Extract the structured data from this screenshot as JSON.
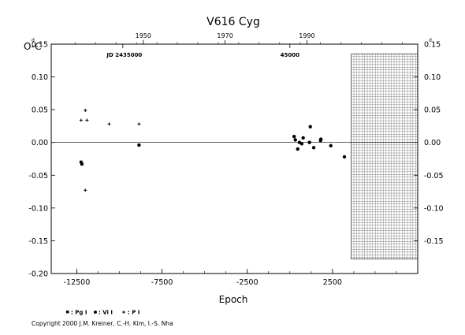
{
  "chart_data": {
    "type": "scatter",
    "title": "V616  Cyg",
    "ylabel": "O-C",
    "ylabel_unit": "d",
    "xlabel": "Epoch",
    "xlim": [
      -14000,
      7500
    ],
    "ylim": [
      -0.2,
      0.15
    ],
    "x_ticks": [
      "-12500",
      "-7500",
      "-2500",
      "2500"
    ],
    "x_tick_values": [
      -12500,
      -7500,
      -2500,
      2500
    ],
    "y_ticks_left": [
      "-0.20",
      "-0.15",
      "-0.10",
      "-0.05",
      "0.00",
      "0.05",
      "0.10",
      "0.15"
    ],
    "y_ticks_right": [
      "-0.15",
      "-0.10",
      "-0.05",
      "0.00",
      "0.05",
      "0.10",
      "0.15"
    ],
    "y_tick_values": [
      -0.2,
      -0.15,
      -0.1,
      -0.05,
      0.0,
      0.05,
      0.1,
      0.15
    ],
    "top_year_ticks": [
      "1950",
      "1970",
      "1990"
    ],
    "top_year_epochs": [
      -8600,
      -3800,
      1000
    ],
    "top_jd_labels": [
      "JD 2435000",
      "45000"
    ],
    "top_jd_epochs": [
      -9800,
      0
    ],
    "grid": false,
    "hatched_region_x": [
      3600,
      7500
    ],
    "hatched_region_y": [
      -0.178,
      0.135
    ],
    "legend_position": "bottom-left",
    "series": [
      {
        "name": "Pg",
        "marker": "square",
        "points": [
          [
            -12250,
            -0.03
          ],
          [
            -12200,
            -0.033
          ]
        ]
      },
      {
        "name": "Vi",
        "marker": "circle",
        "points": [
          [
            -8850,
            -0.004
          ],
          [
            250,
            0.009
          ],
          [
            320,
            0.004
          ],
          [
            460,
            -0.01
          ],
          [
            560,
            0.0
          ],
          [
            700,
            -0.002
          ],
          [
            780,
            0.007
          ],
          [
            1150,
            0.0
          ],
          [
            1200,
            0.024
          ],
          [
            1400,
            -0.008
          ],
          [
            1800,
            0.003
          ],
          [
            1820,
            0.005
          ],
          [
            2400,
            -0.005
          ],
          [
            3200,
            -0.022
          ]
        ]
      },
      {
        "name": "P",
        "marker": "plus",
        "points": [
          [
            -12250,
            0.034
          ],
          [
            -12000,
            0.049
          ],
          [
            -11900,
            0.034
          ],
          [
            -12000,
            -0.073
          ],
          [
            -10600,
            0.028
          ],
          [
            -8850,
            0.028
          ]
        ]
      }
    ]
  },
  "legend": [
    {
      "marker": "square",
      "text": ": Pg I"
    },
    {
      "marker": "circle",
      "text": ": Vi I"
    },
    {
      "marker": "plus",
      "text": ": P I"
    }
  ],
  "copyright": "Copyright 2000 J.M. Kreiner, C.-H. Kim, I.-S. Nha"
}
